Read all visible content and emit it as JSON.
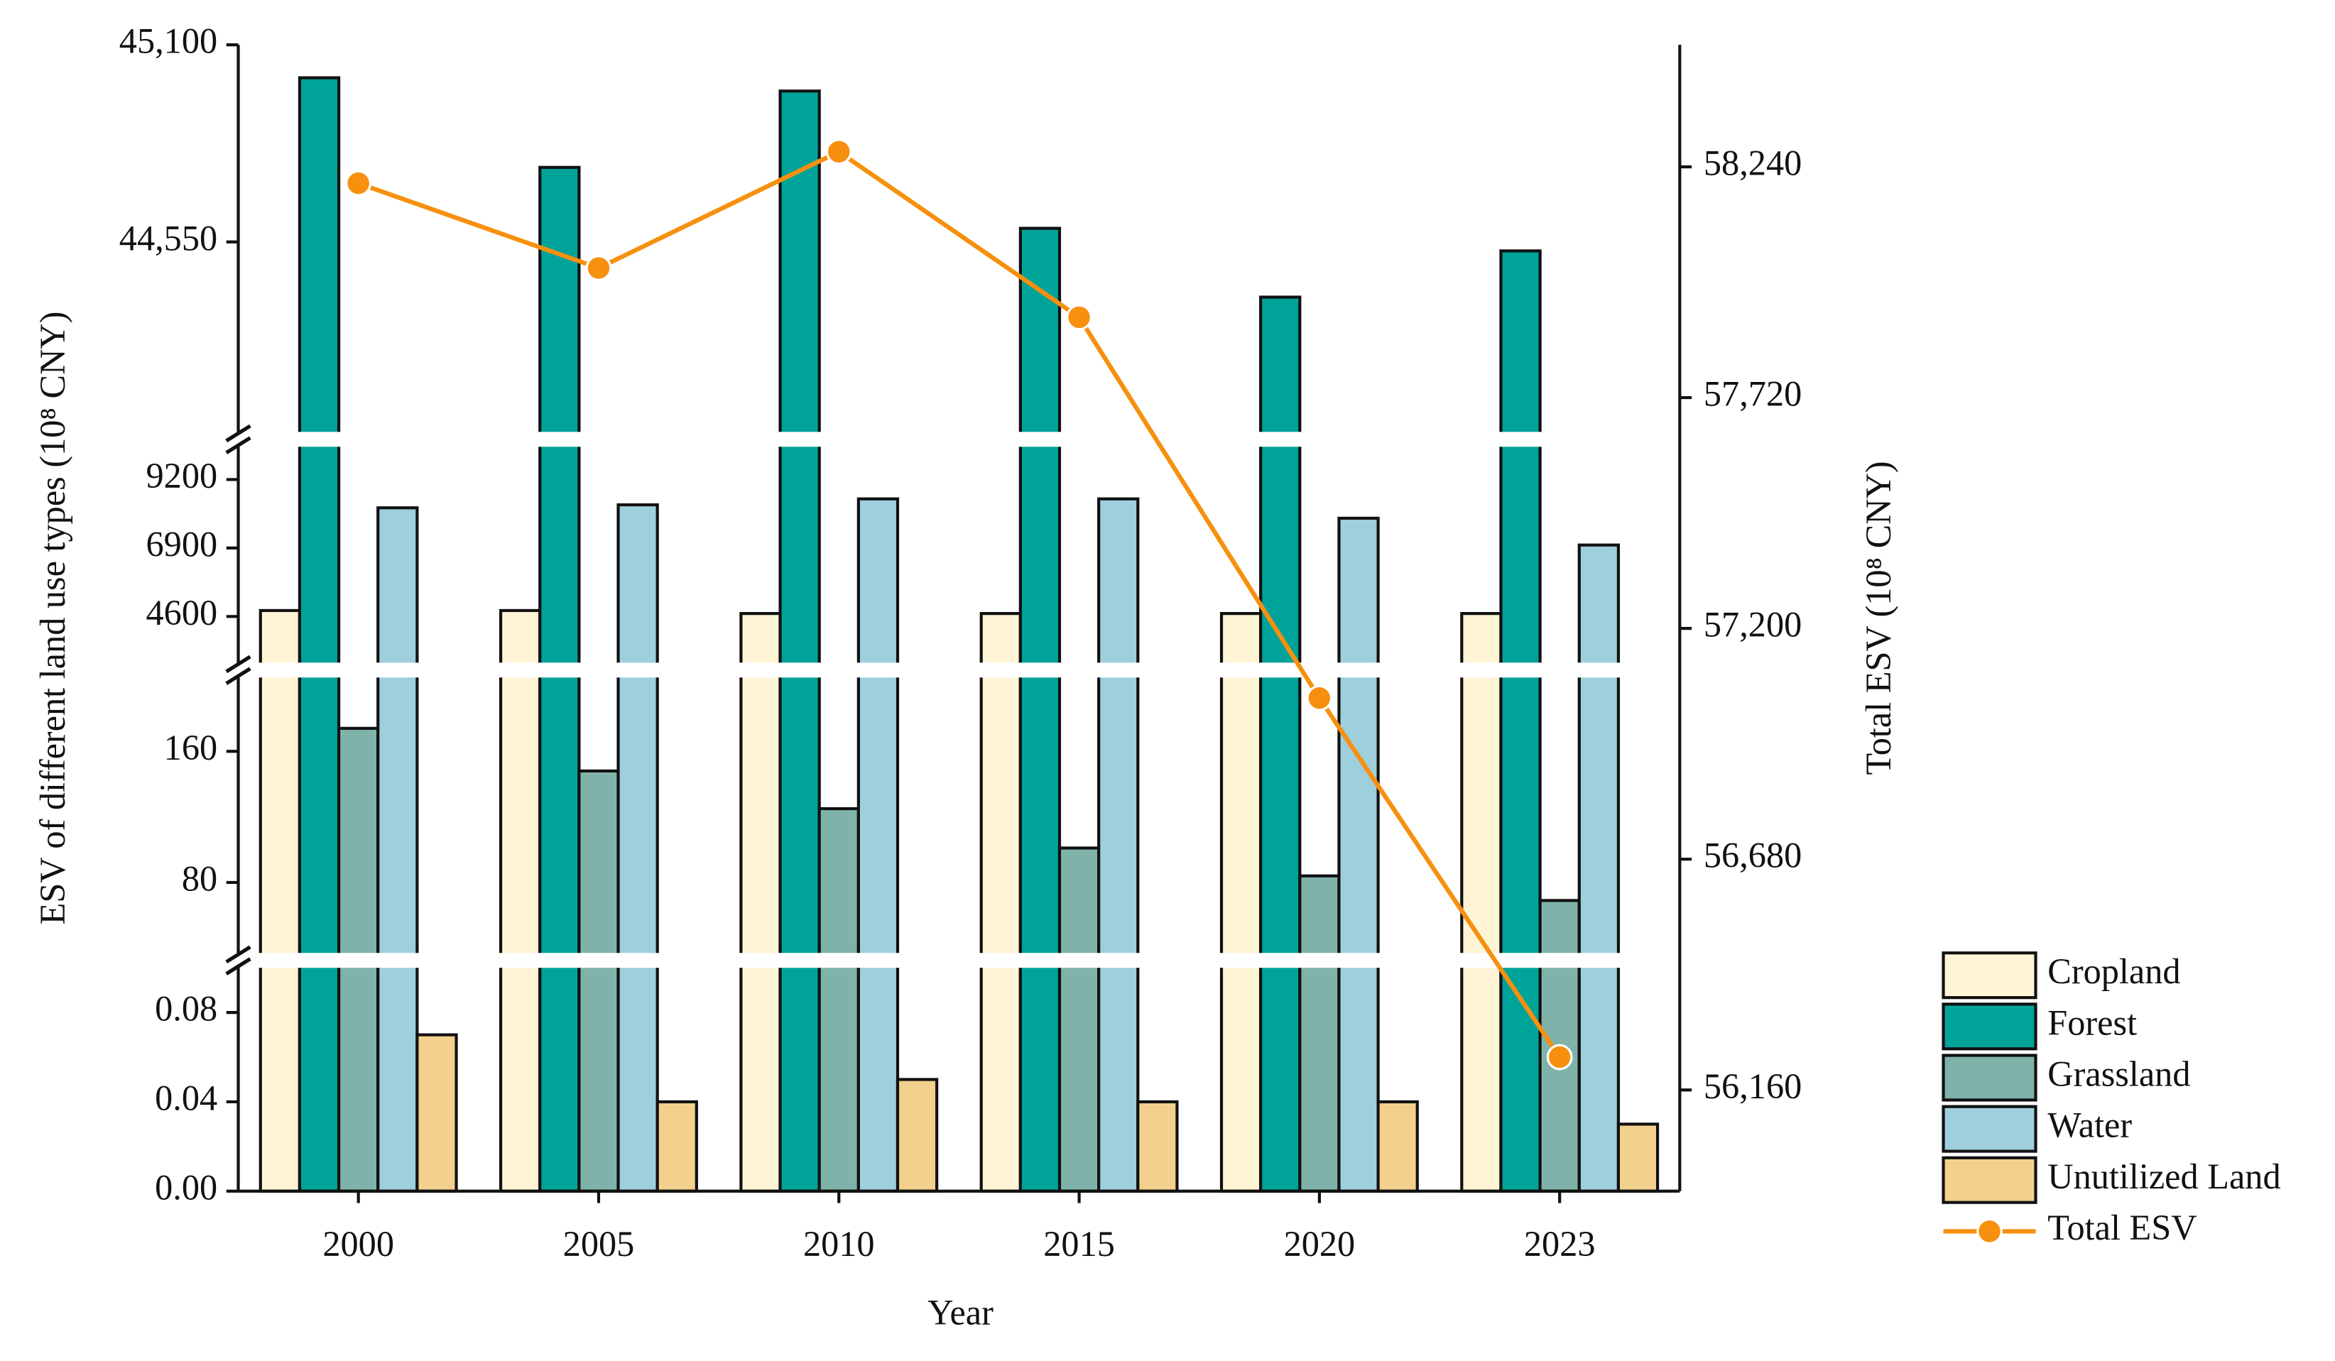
{
  "chart_data": {
    "type": "bar",
    "x_label": "Year",
    "y_label": "ESV of different land use types (10⁸ CNY)",
    "y2_label": "Total ESV (10⁸ CNY)",
    "categories": [
      "2000",
      "2005",
      "2010",
      "2015",
      "2020",
      "2023"
    ],
    "y_segments": [
      {
        "ylim": [
          0,
          0.1
        ],
        "yticks": [
          {
            "value": 0,
            "label": "0.00"
          },
          {
            "value": 0.04,
            "label": "0.04"
          },
          {
            "value": 0.08,
            "label": "0.08"
          }
        ]
      },
      {
        "ylim": [
          37,
          205
        ],
        "yticks": [
          80,
          160
        ]
      },
      {
        "ylim": [
          3050,
          10300
        ],
        "yticks": [
          4600,
          6900,
          9200
        ]
      },
      {
        "ylim": [
          44020,
          45100
        ],
        "yticks": [
          {
            "value": 44550,
            "label": "44,550"
          },
          {
            "value": 45100,
            "label": "45,100"
          }
        ]
      }
    ],
    "y2lim": [
      55932,
      58515
    ],
    "y2ticks": [
      {
        "value": 56160,
        "label": "56,160"
      },
      {
        "value": 56680,
        "label": "56,680"
      },
      {
        "value": 57200,
        "label": "57,200"
      },
      {
        "value": 57720,
        "label": "57,720"
      },
      {
        "value": 58240,
        "label": "58,240"
      }
    ],
    "series": [
      {
        "name": "Cropland",
        "color": "#fff5d6",
        "values": [
          4800,
          4800,
          4700,
          4700,
          4700,
          4700
        ]
      },
      {
        "name": "Forest",
        "color": "#00a39a",
        "values": [
          45008,
          44758,
          44971,
          44588,
          44396,
          44525
        ]
      },
      {
        "name": "Grassland",
        "color": "#7fb3a9",
        "values": [
          174,
          148,
          125,
          101,
          84,
          69
        ]
      },
      {
        "name": "Water",
        "color": "#9ecfdc",
        "values": [
          8250,
          8350,
          8550,
          8550,
          7900,
          7000
        ]
      },
      {
        "name": "Unutilized Land",
        "color": "#f4d08e",
        "values": [
          0.07,
          0.04,
          0.05,
          0.04,
          0.04,
          0.03
        ]
      },
      {
        "name": "Total ESV",
        "color": "#f7900e",
        "type": "line",
        "axis": "y2",
        "values": [
          58203,
          58012,
          58274,
          57901,
          57043,
          56234
        ]
      }
    ]
  }
}
